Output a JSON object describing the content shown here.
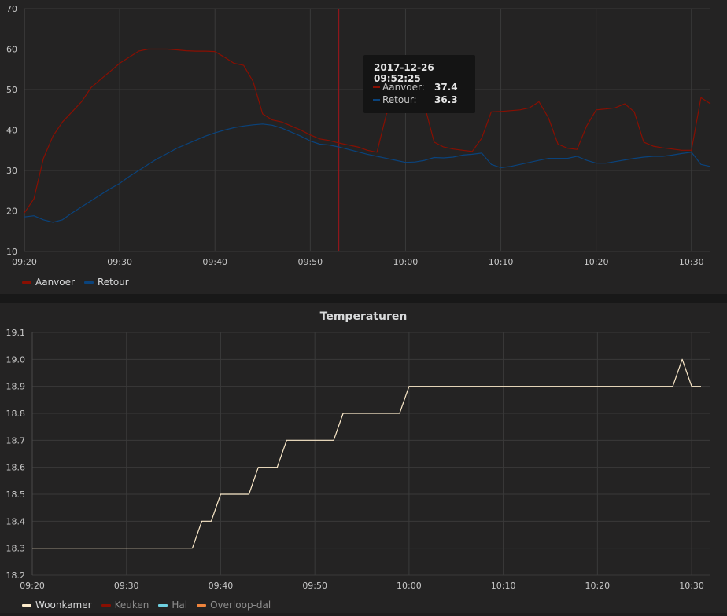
{
  "chart_data": [
    {
      "type": "line",
      "title": "",
      "xlabel": "",
      "ylabel": "",
      "xlim": [
        "09:20",
        "10:32"
      ],
      "ylim": [
        10,
        70
      ],
      "xticks": [
        "09:20",
        "09:30",
        "09:40",
        "09:50",
        "10:00",
        "10:10",
        "10:20",
        "10:30"
      ],
      "yticks": [
        10,
        20,
        30,
        40,
        50,
        60,
        70
      ],
      "grid": true,
      "legend_position": "bottom-left",
      "series": [
        {
          "name": "Aanvoer",
          "color": "#890f02",
          "x": [
            "09:20",
            "09:21",
            "09:22",
            "09:23",
            "09:24",
            "09:25",
            "09:26",
            "09:27",
            "09:28",
            "09:29",
            "09:30",
            "09:31",
            "09:32",
            "09:33",
            "09:34",
            "09:35",
            "09:36",
            "09:37",
            "09:38",
            "09:39",
            "09:40",
            "09:41",
            "09:42",
            "09:43",
            "09:44",
            "09:45",
            "09:46",
            "09:47",
            "09:48",
            "09:49",
            "09:50",
            "09:51",
            "09:52",
            "09:53",
            "09:54",
            "09:55",
            "09:56",
            "09:57",
            "09:58",
            "09:59",
            "10:00",
            "10:01",
            "10:02",
            "10:03",
            "10:04",
            "10:05",
            "10:06",
            "10:07",
            "10:08",
            "10:09",
            "10:10",
            "10:11",
            "10:12",
            "10:13",
            "10:14",
            "10:15",
            "10:16",
            "10:17",
            "10:18",
            "10:19",
            "10:20",
            "10:21",
            "10:22",
            "10:23",
            "10:24",
            "10:25",
            "10:26",
            "10:27",
            "10:28",
            "10:29",
            "10:30",
            "10:31",
            "10:32"
          ],
          "y": [
            19.5,
            23,
            33,
            38.5,
            42,
            44.5,
            47,
            50.5,
            52.5,
            54.5,
            56.5,
            58,
            59.5,
            60,
            60,
            60,
            59.8,
            59.6,
            59.5,
            59.5,
            59.4,
            58,
            56.5,
            56,
            52,
            44,
            42.5,
            42,
            41,
            40,
            38.8,
            37.8,
            37.4,
            36.8,
            36.3,
            35.8,
            35,
            34.5,
            44,
            47,
            48,
            47,
            46,
            37,
            35.8,
            35.3,
            35,
            34.7,
            38,
            44.5,
            44.6,
            44.8,
            45,
            45.5,
            47,
            43,
            36.5,
            35.5,
            35.2,
            41,
            45,
            45.2,
            45.5,
            46.5,
            44.5,
            37,
            36,
            35.6,
            35.3,
            35,
            35,
            48,
            46.5
          ]
        },
        {
          "name": "Retour",
          "color": "#0a437c",
          "x": [
            "09:20",
            "09:21",
            "09:22",
            "09:23",
            "09:24",
            "09:25",
            "09:26",
            "09:27",
            "09:28",
            "09:29",
            "09:30",
            "09:31",
            "09:32",
            "09:33",
            "09:34",
            "09:35",
            "09:36",
            "09:37",
            "09:38",
            "09:39",
            "09:40",
            "09:41",
            "09:42",
            "09:43",
            "09:44",
            "09:45",
            "09:46",
            "09:47",
            "09:48",
            "09:49",
            "09:50",
            "09:51",
            "09:52",
            "09:53",
            "09:54",
            "09:55",
            "09:56",
            "09:57",
            "09:58",
            "09:59",
            "10:00",
            "10:01",
            "10:02",
            "10:03",
            "10:04",
            "10:05",
            "10:06",
            "10:07",
            "10:08",
            "10:09",
            "10:10",
            "10:11",
            "10:12",
            "10:13",
            "10:14",
            "10:15",
            "10:16",
            "10:17",
            "10:18",
            "10:19",
            "10:20",
            "10:21",
            "10:22",
            "10:23",
            "10:24",
            "10:25",
            "10:26",
            "10:27",
            "10:28",
            "10:29",
            "10:30",
            "10:31",
            "10:32"
          ],
          "y": [
            18.5,
            18.8,
            17.8,
            17.2,
            17.8,
            19.5,
            21,
            22.5,
            24,
            25.5,
            26.8,
            28.5,
            30,
            31.5,
            33,
            34.2,
            35.5,
            36.5,
            37.5,
            38.5,
            39.3,
            40,
            40.6,
            41,
            41.3,
            41.5,
            41.2,
            40.5,
            39.5,
            38.5,
            37.3,
            36.5,
            36.3,
            35.8,
            35.2,
            34.6,
            34,
            33.5,
            33,
            32.5,
            32,
            32.1,
            32.5,
            33.2,
            33.1,
            33.3,
            33.8,
            34,
            34.3,
            31.5,
            30.7,
            31,
            31.5,
            32,
            32.5,
            33,
            33,
            33,
            33.5,
            32.5,
            31.8,
            31.8,
            32.2,
            32.6,
            33,
            33.3,
            33.5,
            33.5,
            33.8,
            34.2,
            34.5,
            31.5,
            31
          ]
        }
      ],
      "crosshair_x": "09:53",
      "tooltip": {
        "time": "2017-12-26 09:52:25",
        "rows": [
          {
            "name": "Aanvoer:",
            "value": "37.4",
            "color": "#890f02"
          },
          {
            "name": "Retour:",
            "value": "36.3",
            "color": "#0a437c"
          }
        ]
      }
    },
    {
      "type": "line",
      "title": "Temperaturen",
      "xlabel": "",
      "ylabel": "",
      "xlim": [
        "09:20",
        "10:32"
      ],
      "ylim": [
        18.2,
        19.1
      ],
      "xticks": [
        "09:20",
        "09:30",
        "09:40",
        "09:50",
        "10:00",
        "10:10",
        "10:20",
        "10:30"
      ],
      "yticks": [
        18.2,
        18.3,
        18.4,
        18.5,
        18.6,
        18.7,
        18.8,
        18.9,
        19.0,
        19.1
      ],
      "grid": true,
      "legend_position": "bottom-left",
      "series": [
        {
          "name": "Woonkamer",
          "color": "#fceaca",
          "x": [
            "09:20",
            "09:37",
            "09:38",
            "09:39",
            "09:40",
            "09:43",
            "09:44",
            "09:46",
            "09:47",
            "09:52",
            "09:53",
            "09:59",
            "10:00",
            "10:28",
            "10:29",
            "10:30",
            "10:31"
          ],
          "y": [
            18.3,
            18.3,
            18.4,
            18.4,
            18.5,
            18.5,
            18.6,
            18.6,
            18.7,
            18.7,
            18.8,
            18.8,
            18.9,
            18.9,
            19.0,
            18.9,
            18.9
          ]
        },
        {
          "name": "Keuken",
          "color": "#890f02",
          "x": [],
          "y": []
        },
        {
          "name": "Hal",
          "color": "#6ed0e0",
          "x": [],
          "y": []
        },
        {
          "name": "Overloop-dal",
          "color": "#ef843c",
          "x": [],
          "y": []
        }
      ]
    }
  ]
}
